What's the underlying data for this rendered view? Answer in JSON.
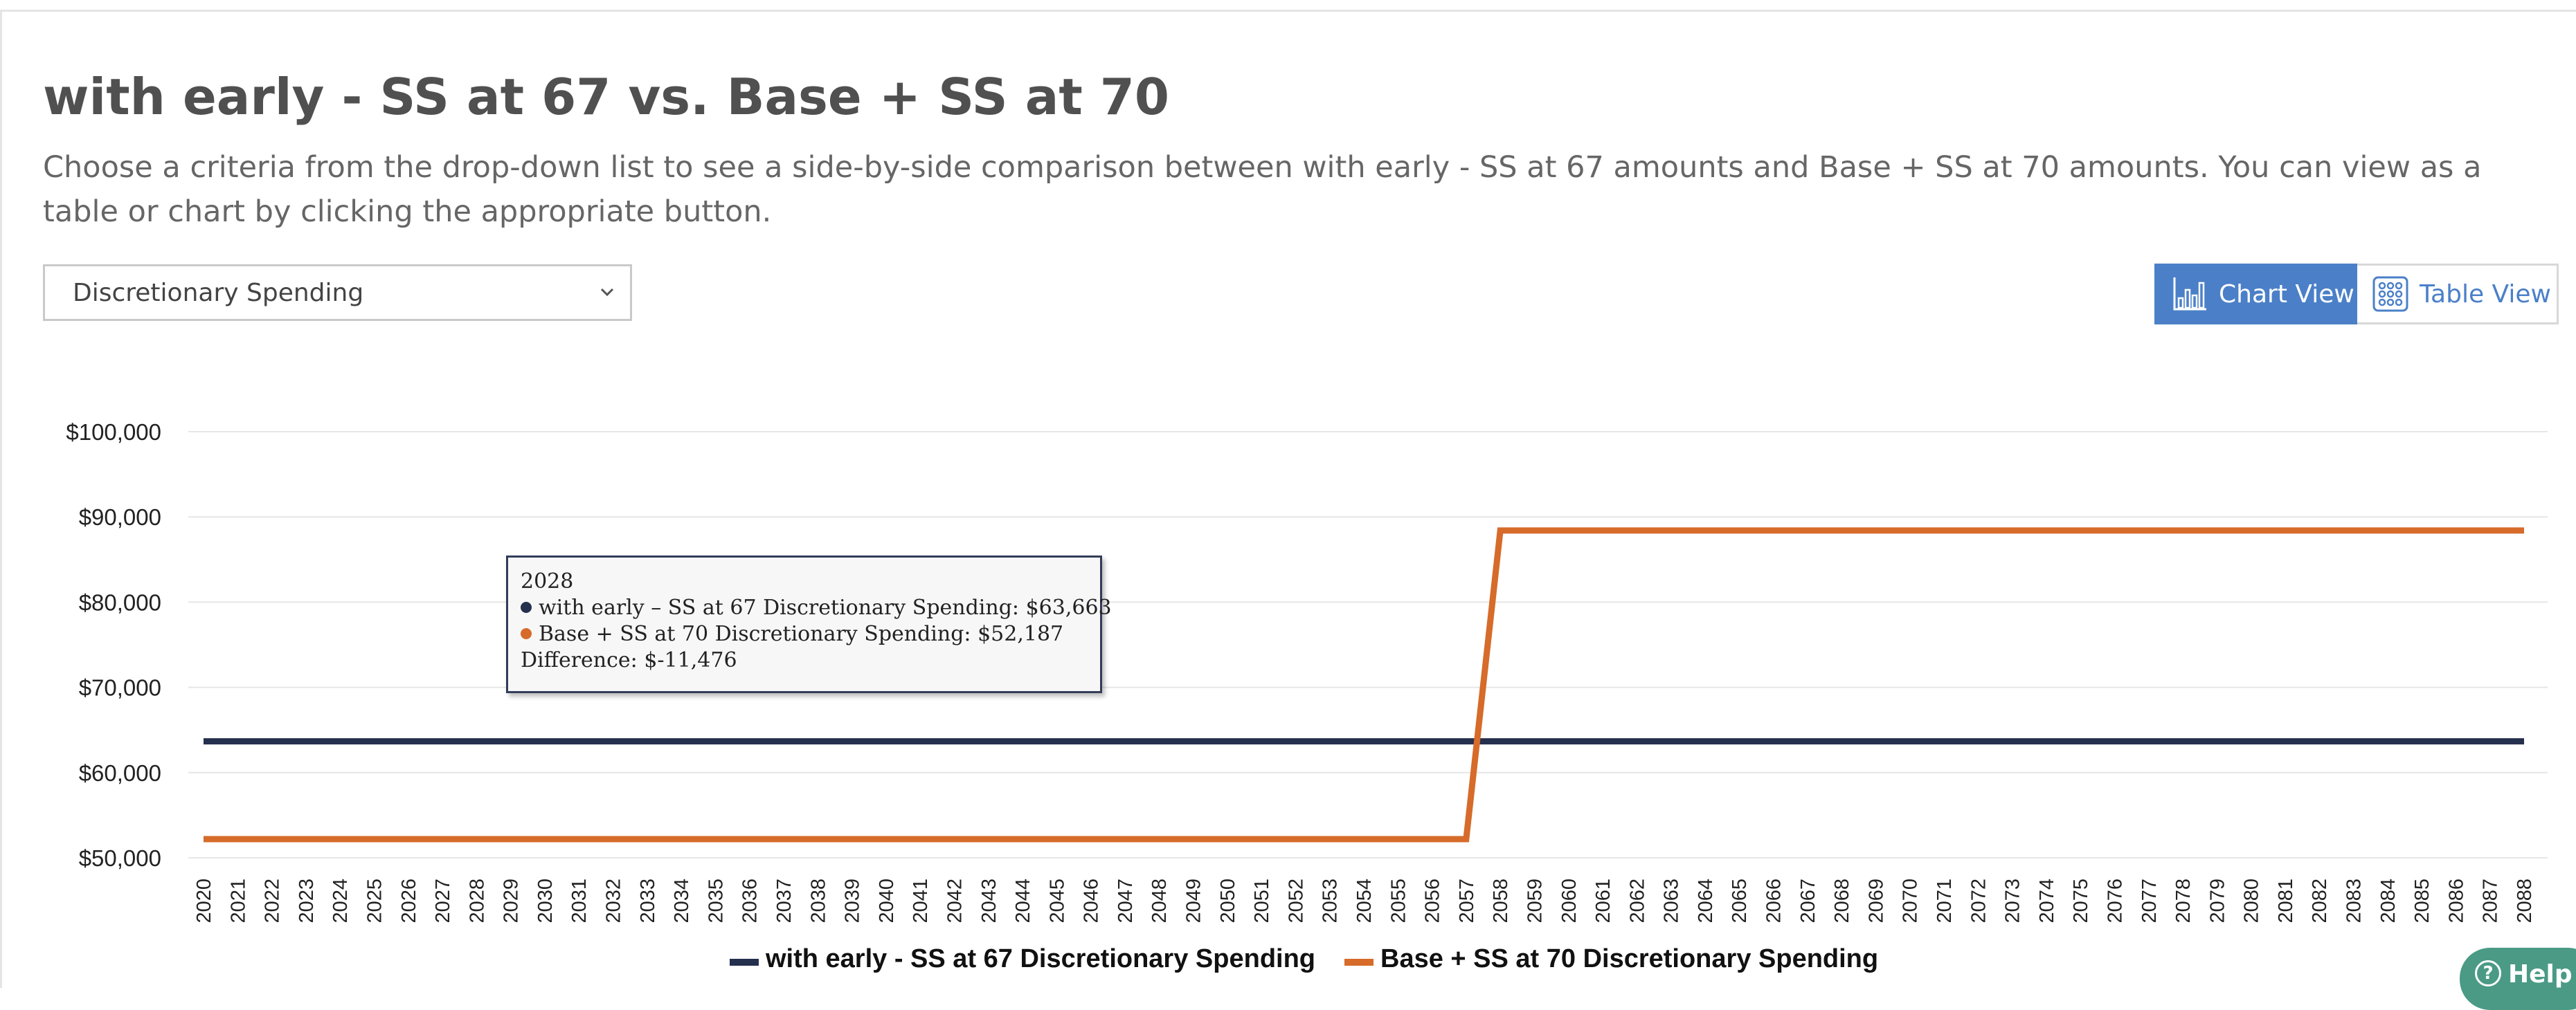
{
  "header": {
    "title": "with early - SS at 67 vs. Base + SS at 70",
    "description": "Choose a criteria from the drop-down list to see a side-by-side comparison between with early - SS at 67 amounts and Base + SS at 70 amounts. You can view as a table or chart by clicking the appropriate button."
  },
  "criteria_select": {
    "value": "Discretionary Spending",
    "icon": "chevron-down-icon"
  },
  "view_toggle": {
    "chart_label": "Chart View",
    "table_label": "Table View",
    "active": "chart",
    "chart_icon": "bar-chart-icon",
    "table_icon": "grid-icon"
  },
  "tooltip": {
    "year": "2028",
    "line1": "with early – SS at 67 Discretionary Spending: $63,663",
    "line2": "Base + SS at 70 Discretionary Spending: $52,187",
    "line3": "Difference: $-11,476"
  },
  "help": {
    "label": "Help",
    "icon": "question-circle-icon"
  },
  "colors": {
    "series1": "#252f4e",
    "series2": "#d66b2a",
    "accent": "#4b80c8",
    "help": "#4a9a86"
  },
  "chart_data": {
    "type": "line",
    "title": "",
    "xlabel": "",
    "ylabel": "",
    "x": [
      2020,
      2021,
      2022,
      2023,
      2024,
      2025,
      2026,
      2027,
      2028,
      2029,
      2030,
      2031,
      2032,
      2033,
      2034,
      2035,
      2036,
      2037,
      2038,
      2039,
      2040,
      2041,
      2042,
      2043,
      2044,
      2045,
      2046,
      2047,
      2048,
      2049,
      2050,
      2051,
      2052,
      2053,
      2054,
      2055,
      2056,
      2057,
      2058,
      2059,
      2060,
      2061,
      2062,
      2063,
      2064,
      2065,
      2066,
      2067,
      2068,
      2069,
      2070,
      2071,
      2072,
      2073,
      2074,
      2075,
      2076,
      2077,
      2078,
      2079,
      2080,
      2081,
      2082,
      2083,
      2084,
      2085,
      2086,
      2087,
      2088
    ],
    "yticks": [
      "$100,000",
      "$90,000",
      "$80,000",
      "$70,000",
      "$60,000",
      "$50,000"
    ],
    "ylim": [
      50000,
      100000
    ],
    "grid": true,
    "legend": "bottom",
    "series": [
      {
        "name": "with early - SS at 67 Discretionary Spending",
        "color": "#252f4e",
        "values": [
          63663,
          63663,
          63663,
          63663,
          63663,
          63663,
          63663,
          63663,
          63663,
          63663,
          63663,
          63663,
          63663,
          63663,
          63663,
          63663,
          63663,
          63663,
          63663,
          63663,
          63663,
          63663,
          63663,
          63663,
          63663,
          63663,
          63663,
          63663,
          63663,
          63663,
          63663,
          63663,
          63663,
          63663,
          63663,
          63663,
          63663,
          63663,
          63663,
          63663,
          63663,
          63663,
          63663,
          63663,
          63663,
          63663,
          63663,
          63663,
          63663,
          63663,
          63663,
          63663,
          63663,
          63663,
          63663,
          63663,
          63663,
          63663,
          63663,
          63663,
          63663,
          63663,
          63663,
          63663,
          63663,
          63663,
          63663,
          63663,
          63663
        ]
      },
      {
        "name": "Base + SS at 70 Discretionary Spending",
        "color": "#d66b2a",
        "values": [
          52187,
          52187,
          52187,
          52187,
          52187,
          52187,
          52187,
          52187,
          52187,
          52187,
          52187,
          52187,
          52187,
          52187,
          52187,
          52187,
          52187,
          52187,
          52187,
          52187,
          52187,
          52187,
          52187,
          52187,
          52187,
          52187,
          52187,
          52187,
          52187,
          52187,
          52187,
          52187,
          52187,
          52187,
          52187,
          52187,
          52187,
          52187,
          88400,
          88400,
          88400,
          88400,
          88400,
          88400,
          88400,
          88400,
          88400,
          88400,
          88400,
          88400,
          88400,
          88400,
          88400,
          88400,
          88400,
          88400,
          88400,
          88400,
          88400,
          88400,
          88400,
          88400,
          88400,
          88400,
          88400,
          88400,
          88400,
          88400,
          88400
        ]
      }
    ]
  }
}
